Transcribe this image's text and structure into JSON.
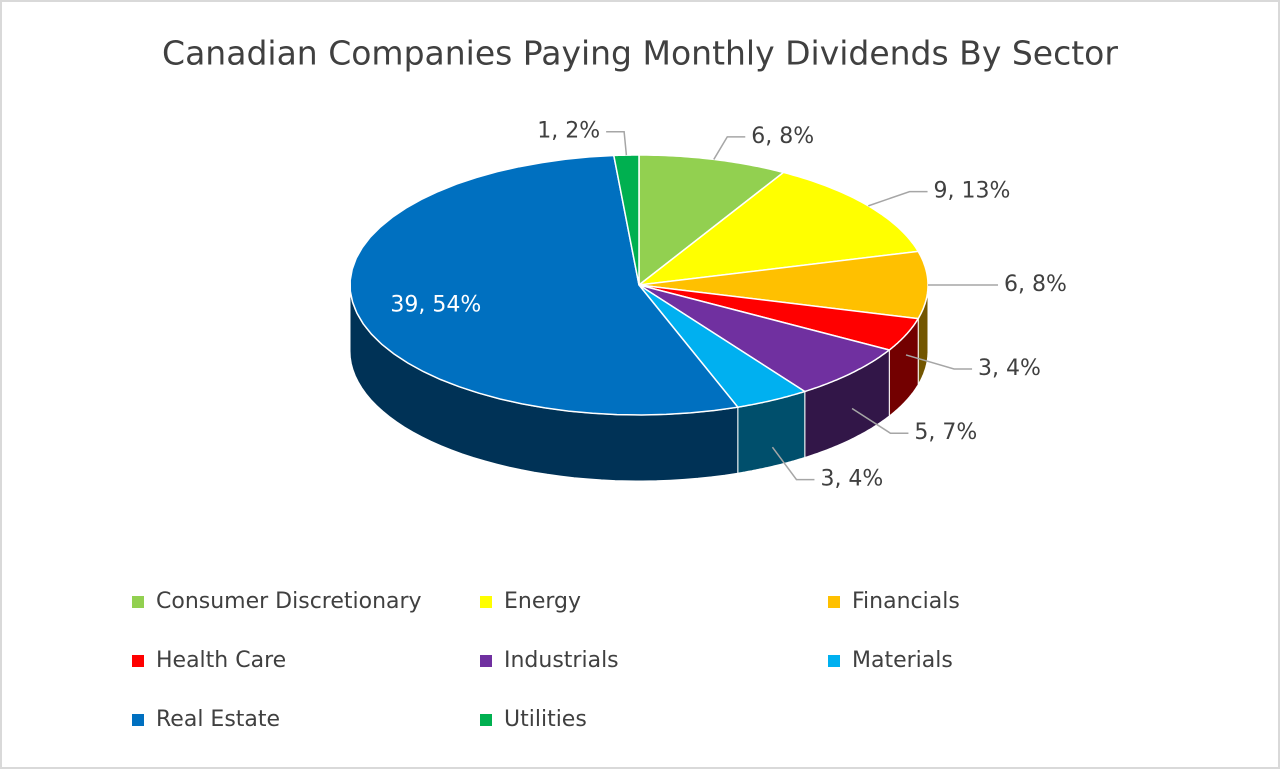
{
  "chart_data": {
    "type": "pie3d",
    "title": "Canadian Companies Paying Monthly Dividends By Sector",
    "categories": [
      "Consumer Discretionary",
      "Energy",
      "Financials",
      "Health Care",
      "Industrials",
      "Materials",
      "Real Estate",
      "Utilities"
    ],
    "values": [
      6,
      9,
      6,
      3,
      5,
      3,
      39,
      1
    ],
    "value_labels": [
      "6, 8%",
      "9, 13%",
      "6, 8%",
      "3, 4%",
      "5, 7%",
      "3, 4%",
      "39, 54%",
      "1, 2%"
    ],
    "colors": [
      "#92d050",
      "#ffff00",
      "#ffc000",
      "#ff0000",
      "#7030a0",
      "#00b0f0",
      "#0070c0",
      "#00b050"
    ],
    "legend": "bottom"
  }
}
